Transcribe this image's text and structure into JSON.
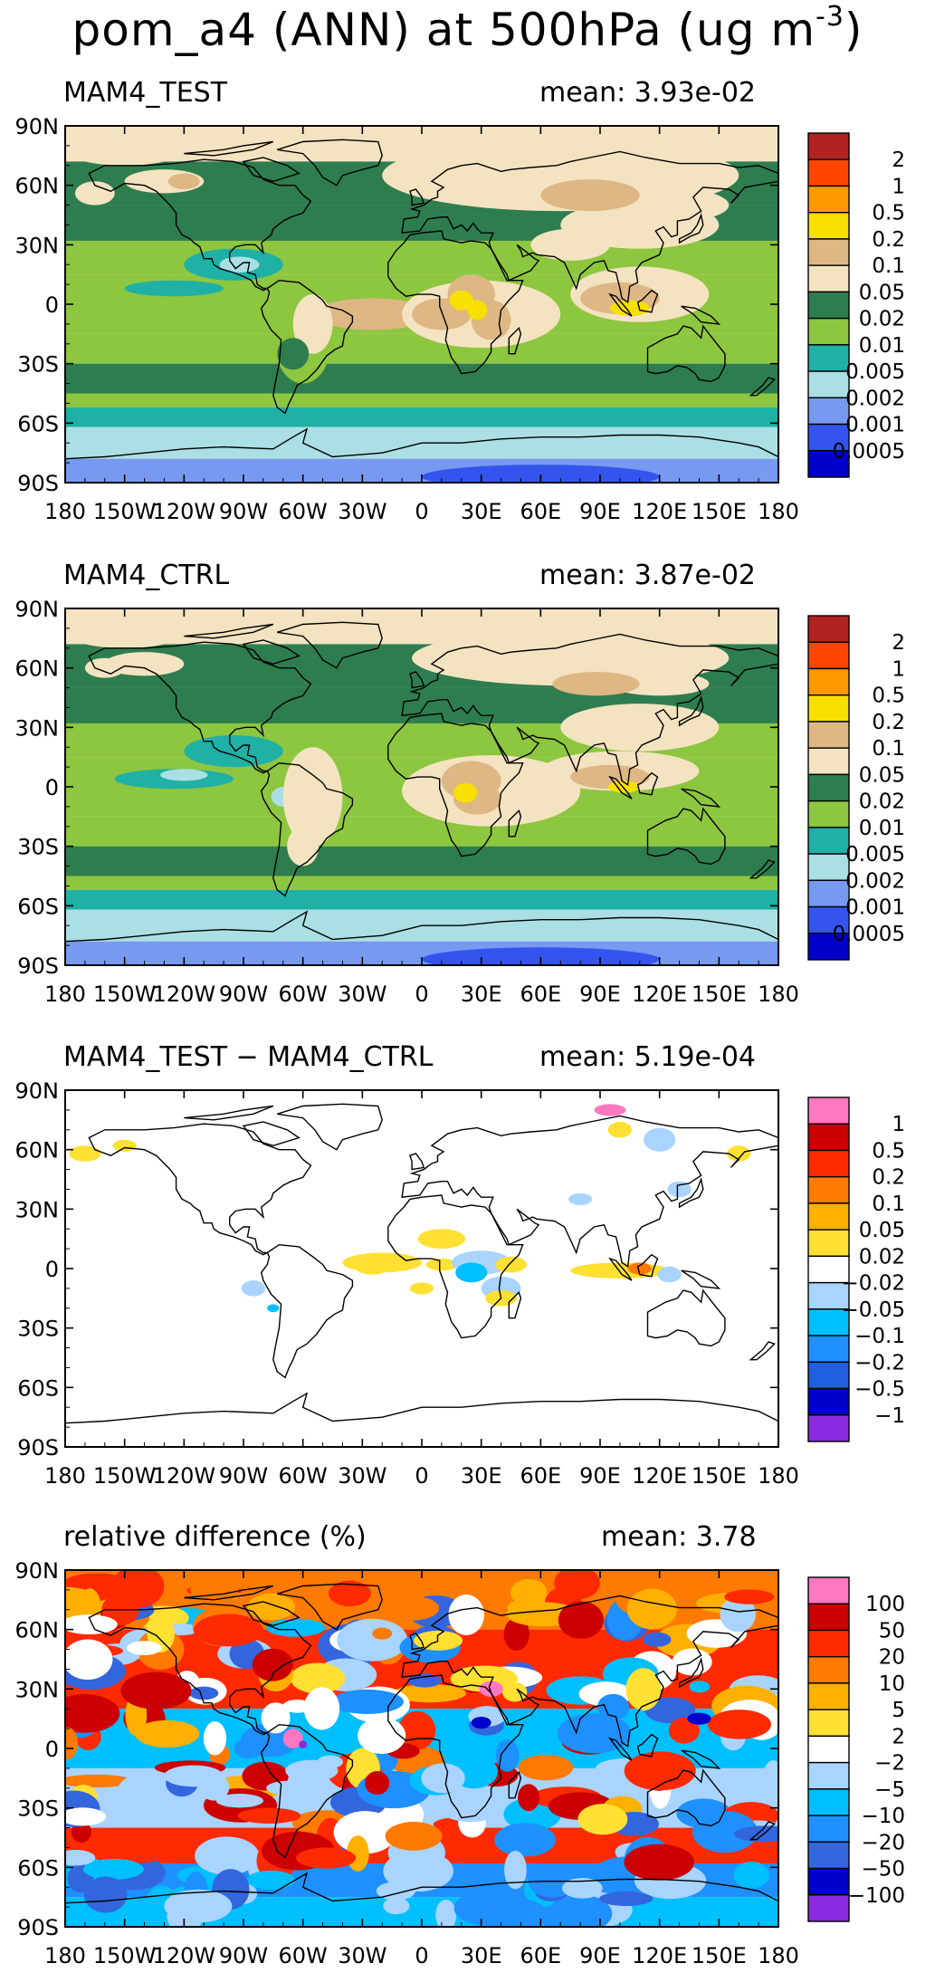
{
  "title": {
    "main": "pom_a4 (ANN) at 500hPa (ug m",
    "exp": "-3",
    "close": ")"
  },
  "colors": {
    "abs": [
      "#0000cc",
      "#3355ee",
      "#7799f0",
      "#aadfe4",
      "#1fb0a6",
      "#8dc63f",
      "#2e7d4f",
      "#f4e3c1",
      "#ddb784",
      "#f7e000",
      "#ff9900",
      "#ff4500",
      "#b22222"
    ],
    "diff": [
      "#8a2be2",
      "#0000cd",
      "#1f5fe0",
      "#1e90ff",
      "#00bfff",
      "#a8d4ff",
      "#ffffff",
      "#ffe033",
      "#ffb000",
      "#ff7a00",
      "#ff2a00",
      "#cc0000",
      "#ff77c0"
    ],
    "rel": [
      "#8a2be2",
      "#0000cd",
      "#3366dd",
      "#1e90ff",
      "#00bfff",
      "#a8d4ff",
      "#ffffff",
      "#ffe033",
      "#ffb000",
      "#ff7a00",
      "#ff2a00",
      "#cc0000",
      "#ff77c0"
    ],
    "coast": "#000000"
  },
  "chart_data": [
    {
      "type": "map",
      "title": "MAM4_TEST",
      "mean_label": "mean:",
      "mean": "3.93e-02",
      "xticks": [
        "180",
        "150W",
        "120W",
        "90W",
        "60W",
        "30W",
        "0",
        "30E",
        "60E",
        "90E",
        "120E",
        "150E",
        "180"
      ],
      "yticks": [
        "90N",
        "60N",
        "30N",
        "0",
        "30S",
        "60S",
        "90S"
      ],
      "colorbar": {
        "labels": [
          "0.0005",
          "0.001",
          "0.002",
          "0.005",
          "0.01",
          "0.02",
          "0.05",
          "0.1",
          "0.2",
          "0.5",
          "1",
          "2"
        ],
        "palette": "abs"
      }
    },
    {
      "type": "map",
      "title": "MAM4_CTRL",
      "mean_label": "mean:",
      "mean": "3.87e-02",
      "xticks": [
        "180",
        "150W",
        "120W",
        "90W",
        "60W",
        "30W",
        "0",
        "30E",
        "60E",
        "90E",
        "120E",
        "150E",
        "180"
      ],
      "yticks": [
        "90N",
        "60N",
        "30N",
        "0",
        "30S",
        "60S",
        "90S"
      ],
      "colorbar": {
        "labels": [
          "0.0005",
          "0.001",
          "0.002",
          "0.005",
          "0.01",
          "0.02",
          "0.05",
          "0.1",
          "0.2",
          "0.5",
          "1",
          "2"
        ],
        "palette": "abs"
      }
    },
    {
      "type": "map",
      "title": "MAM4_TEST − MAM4_CTRL",
      "mean_label": "mean:",
      "mean": "5.19e-04",
      "xticks": [
        "180",
        "150W",
        "120W",
        "90W",
        "60W",
        "30W",
        "0",
        "30E",
        "60E",
        "90E",
        "120E",
        "150E",
        "180"
      ],
      "yticks": [
        "90N",
        "60N",
        "30N",
        "0",
        "30S",
        "60S",
        "90S"
      ],
      "colorbar": {
        "labels": [
          "−1",
          "−0.5",
          "−0.2",
          "−0.1",
          "−0.05",
          "−0.02",
          "0.02",
          "0.05",
          "0.1",
          "0.2",
          "0.5",
          "1"
        ],
        "palette": "diff"
      }
    },
    {
      "type": "map",
      "title": "relative difference (%)",
      "mean_label": "mean:",
      "mean": "3.78",
      "xticks": [
        "180",
        "150W",
        "120W",
        "90W",
        "60W",
        "30W",
        "0",
        "30E",
        "60E",
        "90E",
        "120E",
        "150E",
        "180"
      ],
      "yticks": [
        "90N",
        "60N",
        "30N",
        "0",
        "30S",
        "60S",
        "90S"
      ],
      "colorbar": {
        "labels": [
          "−100",
          "−50",
          "−20",
          "−10",
          "−5",
          "−2",
          "2",
          "5",
          "10",
          "20",
          "50",
          "100"
        ],
        "palette": "rel"
      }
    }
  ]
}
